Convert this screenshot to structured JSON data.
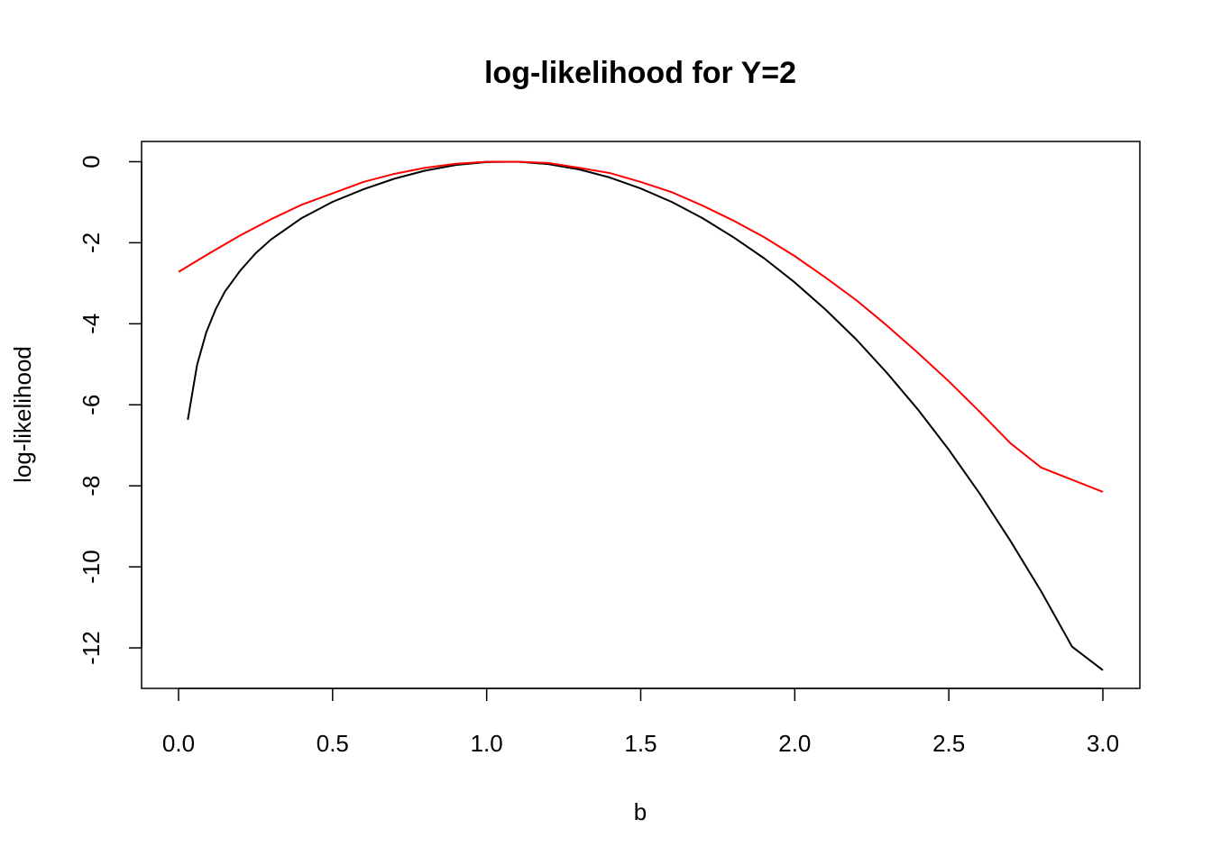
{
  "chart_data": {
    "type": "line",
    "title": "log-likelihood for Y=2",
    "xlabel": "b",
    "ylabel": "log-likelihood",
    "xlim": [
      -0.12,
      3.12
    ],
    "ylim": [
      -13.0,
      0.5
    ],
    "x_ticks": [
      0.0,
      0.5,
      1.0,
      1.5,
      2.0,
      2.5,
      3.0
    ],
    "x_tick_labels": [
      "0.0",
      "0.5",
      "1.0",
      "1.5",
      "2.0",
      "2.5",
      "3.0"
    ],
    "y_ticks": [
      0,
      -2,
      -4,
      -6,
      -8,
      -10,
      -12
    ],
    "y_tick_labels": [
      "0",
      "-2",
      "-4",
      "-6",
      "-8",
      "-10",
      "-12"
    ],
    "grid": false,
    "series": [
      {
        "color": "#000000",
        "x": [
          0.03,
          0.06,
          0.09,
          0.12,
          0.15,
          0.2,
          0.25,
          0.3,
          0.4,
          0.5,
          0.6,
          0.7,
          0.8,
          0.9,
          1.0,
          1.1,
          1.2,
          1.3,
          1.4,
          1.5,
          1.6,
          1.7,
          1.8,
          1.9,
          2.0,
          2.1,
          2.2,
          2.3,
          2.4,
          2.5,
          2.6,
          2.7,
          2.8,
          2.9,
          3.0
        ],
        "y": [
          -6.37,
          -5.02,
          -4.21,
          -3.65,
          -3.21,
          -2.69,
          -2.26,
          -1.92,
          -1.39,
          -0.99,
          -0.68,
          -0.42,
          -0.22,
          -0.08,
          -0.01,
          0.0,
          -0.06,
          -0.19,
          -0.39,
          -0.66,
          -0.99,
          -1.39,
          -1.86,
          -2.38,
          -2.98,
          -3.65,
          -4.39,
          -5.22,
          -6.12,
          -7.11,
          -8.19,
          -9.36,
          -10.61,
          -11.97,
          -12.55
        ]
      },
      {
        "color": "#ff0000",
        "x": [
          0.0,
          0.1,
          0.2,
          0.3,
          0.4,
          0.5,
          0.6,
          0.7,
          0.8,
          0.9,
          1.0,
          1.1,
          1.2,
          1.3,
          1.4,
          1.5,
          1.6,
          1.7,
          1.8,
          1.9,
          2.0,
          2.1,
          2.2,
          2.3,
          2.4,
          2.5,
          2.6,
          2.7,
          2.8,
          2.9,
          3.0
        ],
        "y": [
          -2.72,
          -2.26,
          -1.82,
          -1.42,
          -1.06,
          -0.78,
          -0.5,
          -0.3,
          -0.15,
          -0.05,
          0.0,
          0.0,
          -0.03,
          -0.15,
          -0.28,
          -0.5,
          -0.75,
          -1.08,
          -1.45,
          -1.86,
          -2.33,
          -2.86,
          -3.42,
          -4.05,
          -4.72,
          -5.42,
          -6.17,
          -6.95,
          -7.55,
          -7.85,
          -8.15
        ]
      }
    ]
  }
}
